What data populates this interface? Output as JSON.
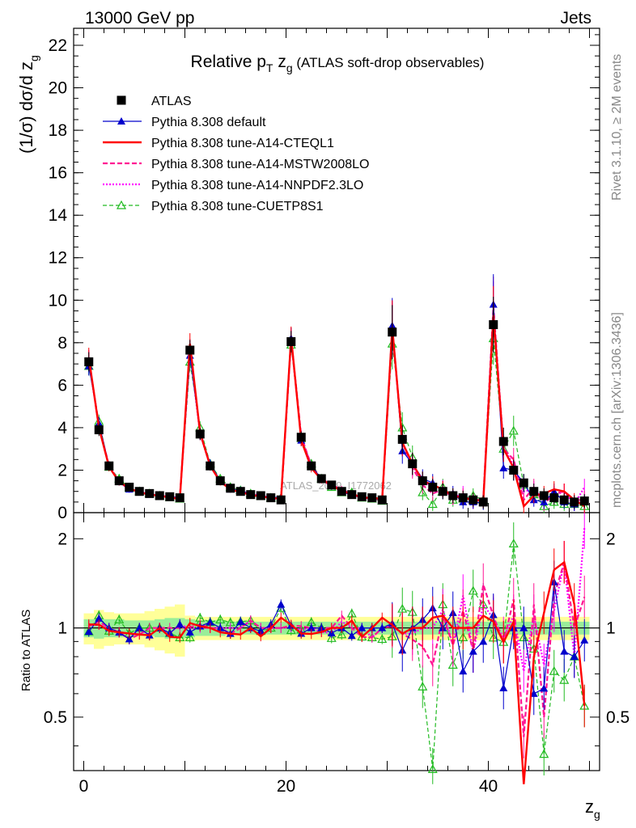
{
  "header": {
    "left": "13000 GeV pp",
    "right": "Jets"
  },
  "side_labels": {
    "rivet": "Rivet 3.1.10, ≥ 2M events",
    "mcplots": "mcplots.cern.ch [arXiv:1306.3436]"
  },
  "watermark": "ATLAS_2019_I1772062",
  "colors": {
    "atlas": "#000000",
    "default": "#0000cc",
    "cteql1": "#ff0000",
    "mstw": "#ff1493",
    "nnpdf": "#ff00ff",
    "cuetp8s1": "#22bb22",
    "band_inner": "#99ee99",
    "band_outer": "#ffff99"
  },
  "chart_data": [
    {
      "type": "line",
      "title_parts": {
        "pre": "Relative p",
        "sub1": "T",
        "mid": " z",
        "sub2": "g",
        "post": " (ATLAS soft-drop observables)"
      },
      "ylabel_parts": {
        "pre": "(1/σ) dσ/d z",
        "sub": "g"
      },
      "ylim": [
        0,
        22.8
      ],
      "xlim": [
        -1,
        51
      ],
      "yticks": [
        0,
        2,
        4,
        6,
        8,
        10,
        12,
        14,
        16,
        18,
        20,
        22
      ],
      "legend_position": "top-left",
      "x": [
        0.5,
        1.5,
        2.5,
        3.5,
        4.5,
        5.5,
        6.5,
        7.5,
        8.5,
        9.5,
        10.5,
        11.5,
        12.5,
        13.5,
        14.5,
        15.5,
        16.5,
        17.5,
        18.5,
        19.5,
        20.5,
        21.5,
        22.5,
        23.5,
        24.5,
        25.5,
        26.5,
        27.5,
        28.5,
        29.5,
        30.5,
        31.5,
        32.5,
        33.5,
        34.5,
        35.5,
        36.5,
        37.5,
        38.5,
        39.5,
        40.5,
        41.5,
        42.5,
        43.5,
        44.5,
        45.5,
        46.5,
        47.5,
        48.5,
        49.5
      ],
      "series": [
        {
          "name": "ATLAS",
          "key": "atlas",
          "values": [
            7.1,
            3.9,
            2.2,
            1.5,
            1.2,
            1.0,
            0.9,
            0.8,
            0.75,
            0.7,
            7.65,
            3.7,
            2.2,
            1.5,
            1.15,
            1.0,
            0.85,
            0.8,
            0.7,
            0.6,
            8.05,
            3.55,
            2.2,
            1.6,
            1.3,
            1.0,
            0.85,
            0.75,
            0.7,
            0.6,
            8.5,
            3.45,
            2.3,
            1.5,
            1.2,
            1.0,
            0.8,
            0.7,
            0.6,
            0.5,
            8.85,
            3.35,
            2.0,
            1.4,
            1.0,
            0.8,
            0.7,
            0.6,
            0.5,
            0.55
          ]
        },
        {
          "name": "Pythia 8.308 default",
          "key": "default",
          "values": [
            6.9,
            4.2,
            2.2,
            1.45,
            1.1,
            1.0,
            0.85,
            0.8,
            0.72,
            0.72,
            7.4,
            3.75,
            2.3,
            1.5,
            1.1,
            1.05,
            0.85,
            0.78,
            0.72,
            0.72,
            8.2,
            3.4,
            2.2,
            1.6,
            1.25,
            1.0,
            0.8,
            0.75,
            0.7,
            0.6,
            8.8,
            2.9,
            2.3,
            1.6,
            1.4,
            1.0,
            0.9,
            0.5,
            0.5,
            0.45,
            9.8,
            2.1,
            2.0,
            1.4,
            0.6,
            0.5,
            1.0,
            0.5,
            0.4,
            0.5
          ]
        },
        {
          "name": "Pythia 8.308 tune-A14-CTEQL1",
          "key": "cteql1",
          "values": [
            7.3,
            4.0,
            2.15,
            1.45,
            1.15,
            0.95,
            0.85,
            0.8,
            0.7,
            0.65,
            7.95,
            3.75,
            2.2,
            1.45,
            1.1,
            0.95,
            0.85,
            0.75,
            0.7,
            0.65,
            8.25,
            3.4,
            2.1,
            1.55,
            1.3,
            1.0,
            0.9,
            0.7,
            0.7,
            0.65,
            8.7,
            3.3,
            2.3,
            1.5,
            1.3,
            1.1,
            0.8,
            0.7,
            0.6,
            0.55,
            9.3,
            3.0,
            2.1,
            0.3,
            0.8,
            0.9,
            1.1,
            1.0,
            0.6,
            0.3
          ]
        },
        {
          "name": "Pythia 8.308 tune-A14-MSTW2008LO",
          "key": "mstw",
          "values": [
            7.2,
            4.1,
            2.2,
            1.45,
            1.1,
            0.95,
            0.9,
            0.8,
            0.75,
            0.7,
            7.7,
            3.8,
            2.2,
            1.5,
            1.1,
            1.0,
            0.9,
            0.8,
            0.7,
            0.6,
            8.2,
            3.6,
            2.2,
            1.6,
            1.3,
            1.1,
            0.85,
            0.7,
            0.65,
            0.6,
            8.6,
            3.3,
            2.1,
            1.3,
            0.9,
            1.1,
            0.7,
            0.8,
            0.5,
            0.7,
            9.7,
            3.0,
            2.5,
            0.6,
            1.2,
            0.4,
            0.9,
            1.0,
            0.5,
            0.7
          ]
        },
        {
          "name": "Pythia 8.308 tune-A14-NNPDF2.3LO",
          "key": "nnpdf",
          "values": [
            7.2,
            4.0,
            2.2,
            1.45,
            1.1,
            1.0,
            0.85,
            0.8,
            0.72,
            0.72,
            7.6,
            3.7,
            2.2,
            1.5,
            1.15,
            1.0,
            0.9,
            0.8,
            0.7,
            0.6,
            8.1,
            3.5,
            2.2,
            1.55,
            1.25,
            1.05,
            0.85,
            0.75,
            0.65,
            0.6,
            8.7,
            3.3,
            2.2,
            1.5,
            1.2,
            1.15,
            0.7,
            0.9,
            0.5,
            0.6,
            9.5,
            3.1,
            2.2,
            1.0,
            1.1,
            0.6,
            0.8,
            1.0,
            0.4,
            1.2
          ]
        },
        {
          "name": "Pythia 8.308 tune-CUETP8S1",
          "key": "cuetp8s1",
          "values": [
            6.9,
            4.3,
            2.15,
            1.6,
            1.15,
            1.0,
            0.9,
            0.8,
            0.72,
            0.65,
            7.1,
            4.0,
            2.3,
            1.6,
            1.2,
            1.05,
            0.9,
            0.78,
            0.7,
            0.7,
            7.9,
            3.5,
            2.3,
            1.6,
            1.2,
            0.95,
            0.95,
            0.7,
            0.65,
            0.55,
            7.95,
            4.0,
            2.6,
            0.95,
            0.4,
            1.2,
            0.6,
            0.65,
            0.8,
            0.6,
            8.2,
            3.0,
            3.85,
            1.3,
            0.85,
            0.3,
            0.5,
            0.4,
            0.4,
            0.3
          ]
        }
      ]
    },
    {
      "type": "line",
      "ylabel": "Ratio to ATLAS",
      "xlabel_parts": {
        "pre": "z",
        "sub": "g"
      },
      "ylim": [
        0.33,
        2.45
      ],
      "log_y": true,
      "xlim": [
        -1,
        51
      ],
      "xticks": [
        0,
        20,
        40
      ],
      "yticks": [
        0.5,
        1,
        2
      ],
      "reference_line": 1,
      "band_inner": [
        0.07,
        0.08,
        0.07,
        0.07,
        0.06,
        0.06,
        0.06,
        0.07,
        0.08,
        0.08,
        0.07,
        0.06,
        0.06,
        0.06,
        0.05,
        0.05,
        0.05,
        0.05,
        0.05,
        0.05,
        0.05,
        0.05,
        0.05,
        0.05,
        0.05,
        0.05,
        0.05,
        0.05,
        0.05,
        0.05,
        0.05,
        0.05,
        0.05,
        0.05,
        0.05,
        0.05,
        0.05,
        0.05,
        0.05,
        0.05,
        0.05,
        0.05,
        0.05,
        0.05,
        0.05,
        0.05,
        0.05,
        0.05,
        0.05,
        0.05
      ],
      "band_outer": [
        0.12,
        0.15,
        0.13,
        0.12,
        0.12,
        0.12,
        0.14,
        0.16,
        0.18,
        0.2,
        0.1,
        0.09,
        0.09,
        0.09,
        0.09,
        0.09,
        0.09,
        0.09,
        0.09,
        0.09,
        0.09,
        0.09,
        0.09,
        0.09,
        0.09,
        0.09,
        0.09,
        0.09,
        0.09,
        0.09,
        0.09,
        0.09,
        0.09,
        0.09,
        0.09,
        0.09,
        0.09,
        0.09,
        0.09,
        0.09,
        0.09,
        0.09,
        0.09,
        0.09,
        0.09,
        0.09,
        0.09,
        0.09,
        0.09,
        0.09
      ]
    }
  ]
}
